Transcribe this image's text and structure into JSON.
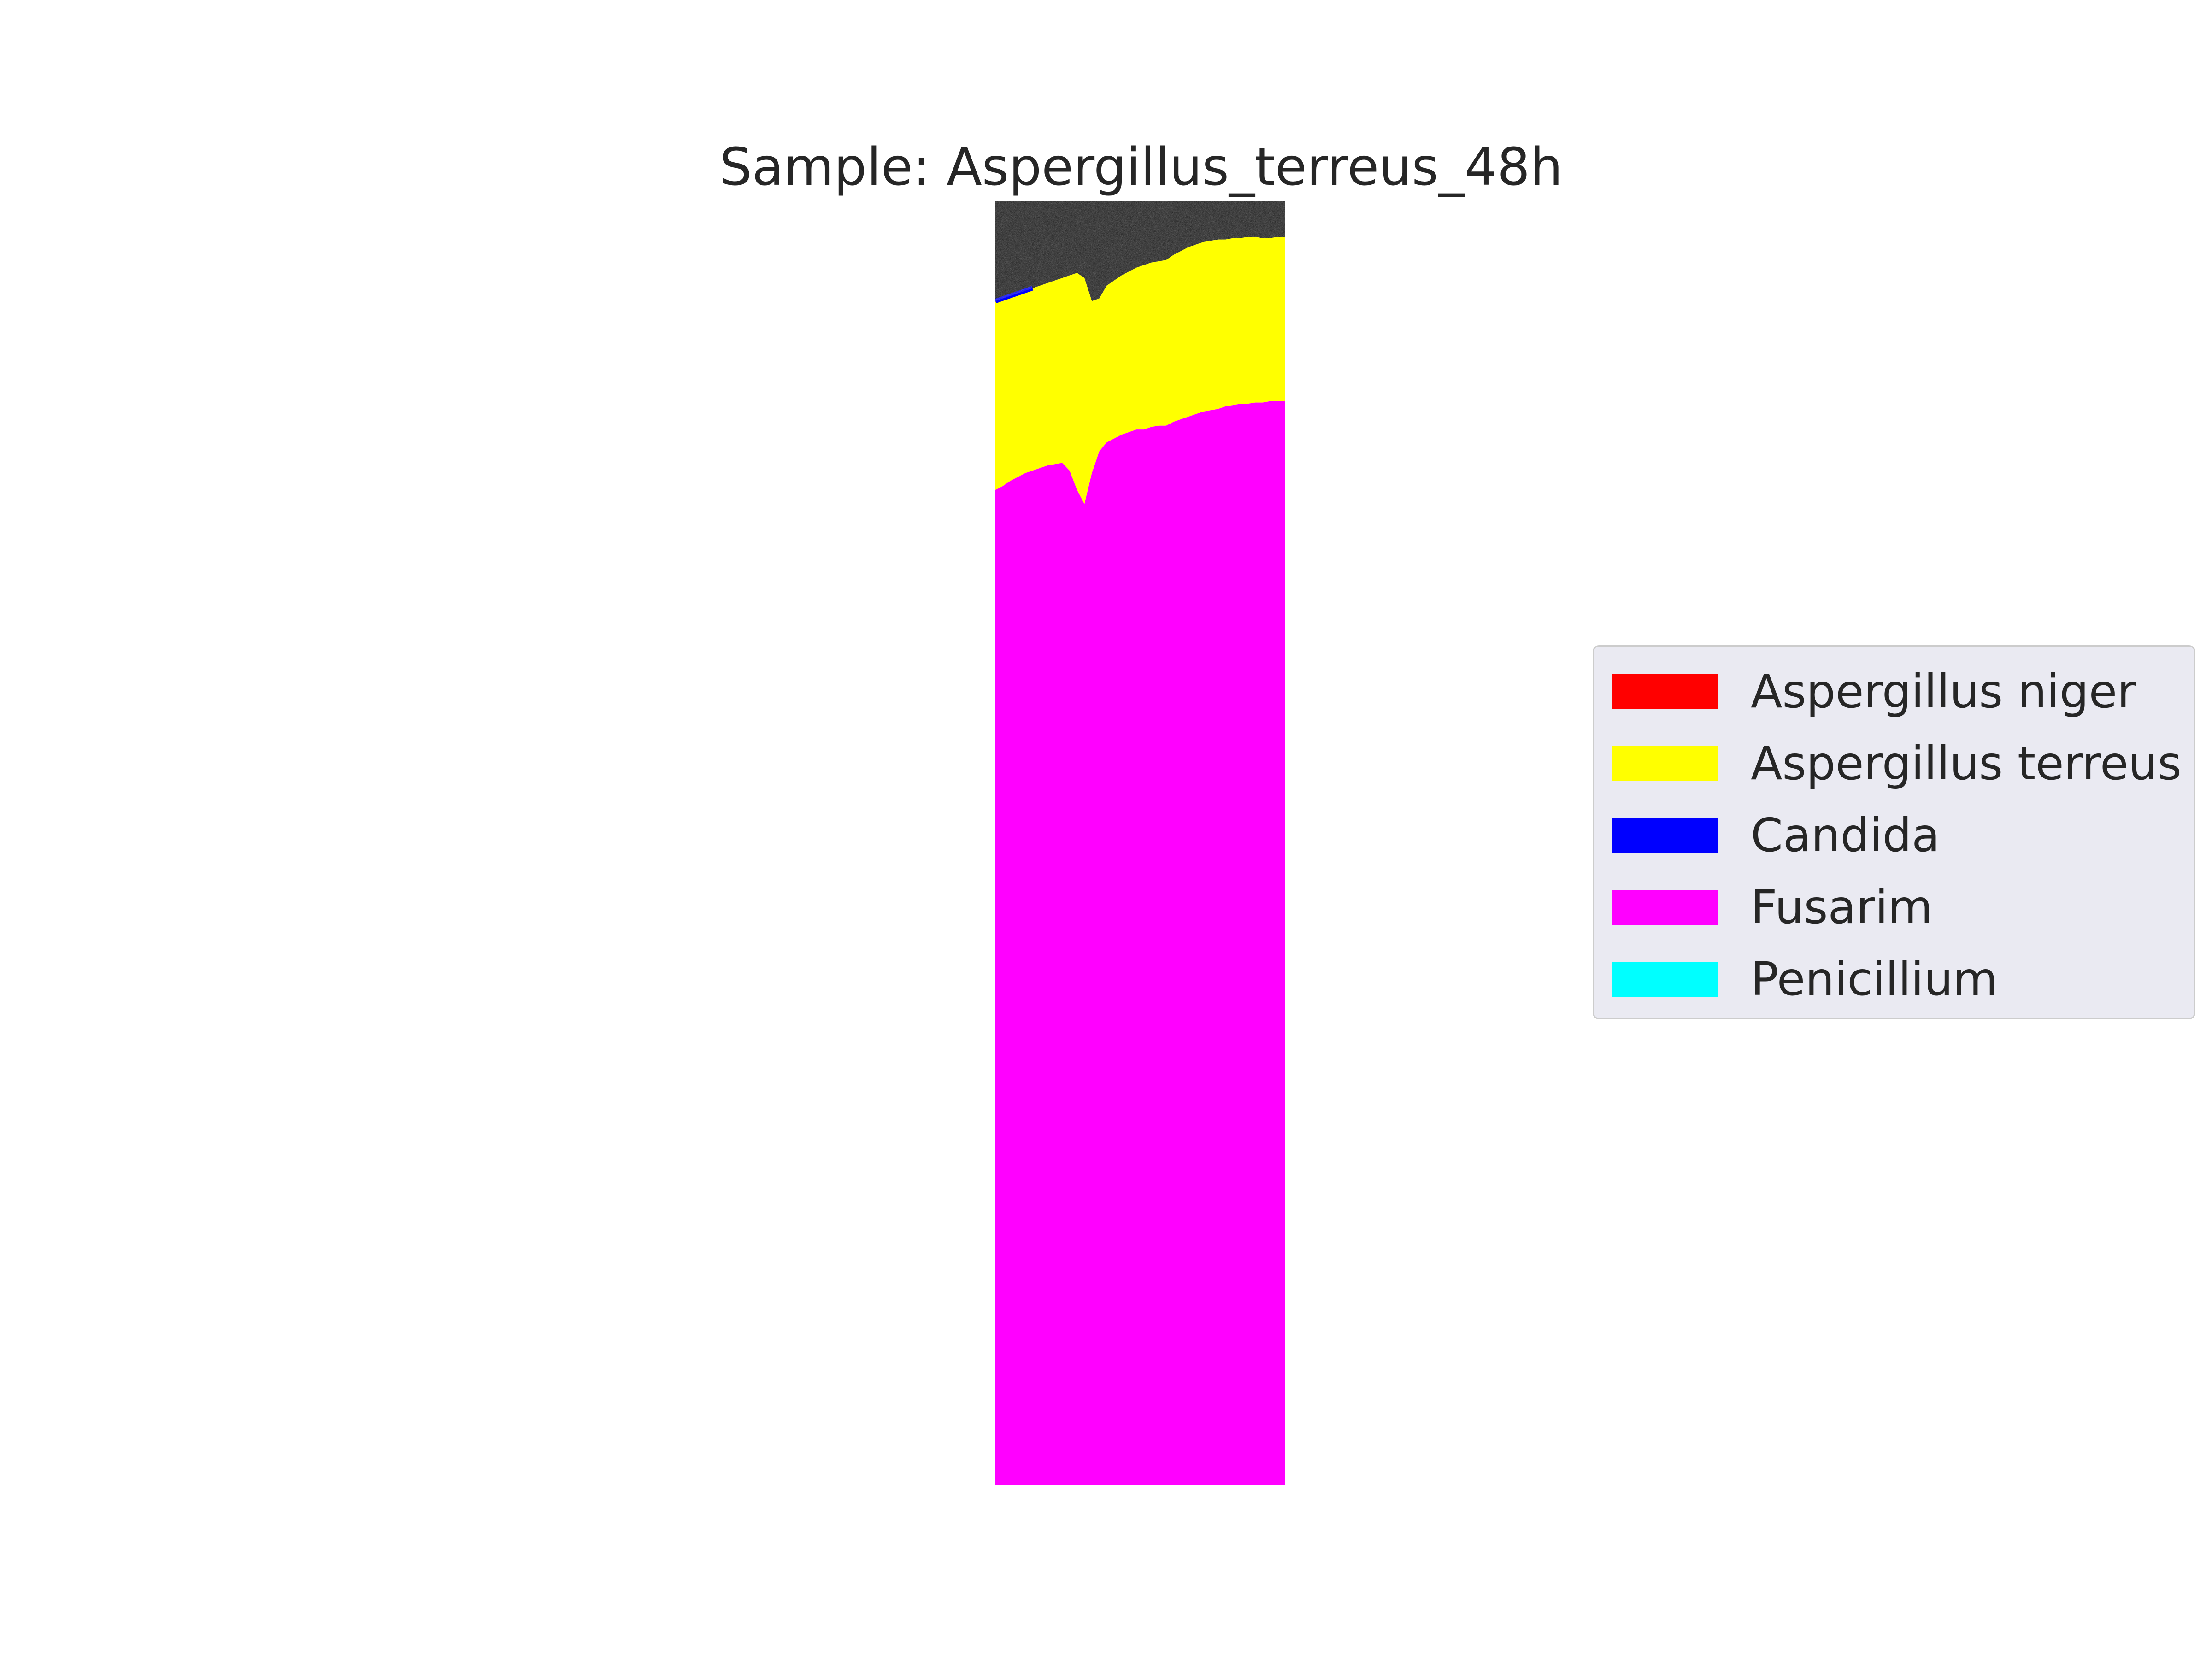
{
  "chart_data": {
    "type": "heatmap",
    "title": "Sample: Aspergillus_terreus_48h",
    "xlabel": "",
    "ylabel": "",
    "axes_visible": false,
    "grid": false,
    "legend_position": "center-right",
    "legend": [
      {
        "label": "Aspergillus niger",
        "color": "#ff0000"
      },
      {
        "label": "Aspergillus terreus",
        "color": "#ffff00"
      },
      {
        "label": "Candida",
        "color": "#0000ff"
      },
      {
        "label": "Fusarim",
        "color": "#ff00ff"
      },
      {
        "label": "Penicillium",
        "color": "#00ffff"
      }
    ],
    "background_color": "#1a1a1a",
    "columns": 40,
    "regions": [
      {
        "class": "background",
        "bottom_boundary": [
          0.078,
          0.076,
          0.074,
          0.072,
          0.07,
          0.068,
          0.066,
          0.064,
          0.062,
          0.06,
          0.058,
          0.056,
          0.06,
          0.078,
          0.076,
          0.066,
          0.062,
          0.058,
          0.055,
          0.052,
          0.05,
          0.048,
          0.047,
          0.046,
          0.042,
          0.039,
          0.036,
          0.034,
          0.032,
          0.031,
          0.03,
          0.03,
          0.029,
          0.029,
          0.028,
          0.028,
          0.029,
          0.029,
          0.028,
          0.028
        ]
      },
      {
        "class": "Aspergillus terreus",
        "bottom_boundary": [
          0.225,
          0.222,
          0.218,
          0.215,
          0.212,
          0.21,
          0.208,
          0.206,
          0.205,
          0.204,
          0.21,
          0.225,
          0.236,
          0.212,
          0.195,
          0.188,
          0.185,
          0.182,
          0.18,
          0.178,
          0.178,
          0.176,
          0.175,
          0.175,
          0.172,
          0.17,
          0.168,
          0.166,
          0.164,
          0.163,
          0.162,
          0.16,
          0.159,
          0.158,
          0.158,
          0.157,
          0.157,
          0.156,
          0.156,
          0.156
        ]
      },
      {
        "class": "Fusarim",
        "bottom_boundary": [
          1.0,
          1.0,
          1.0,
          1.0,
          1.0,
          1.0,
          1.0,
          1.0,
          1.0,
          1.0,
          1.0,
          1.0,
          1.0,
          1.0,
          1.0,
          1.0,
          1.0,
          1.0,
          1.0,
          1.0,
          1.0,
          1.0,
          1.0,
          1.0,
          1.0,
          1.0,
          1.0,
          1.0,
          1.0,
          1.0,
          1.0,
          1.0,
          1.0,
          1.0,
          1.0,
          1.0,
          1.0,
          1.0,
          1.0,
          1.0
        ]
      }
    ]
  }
}
